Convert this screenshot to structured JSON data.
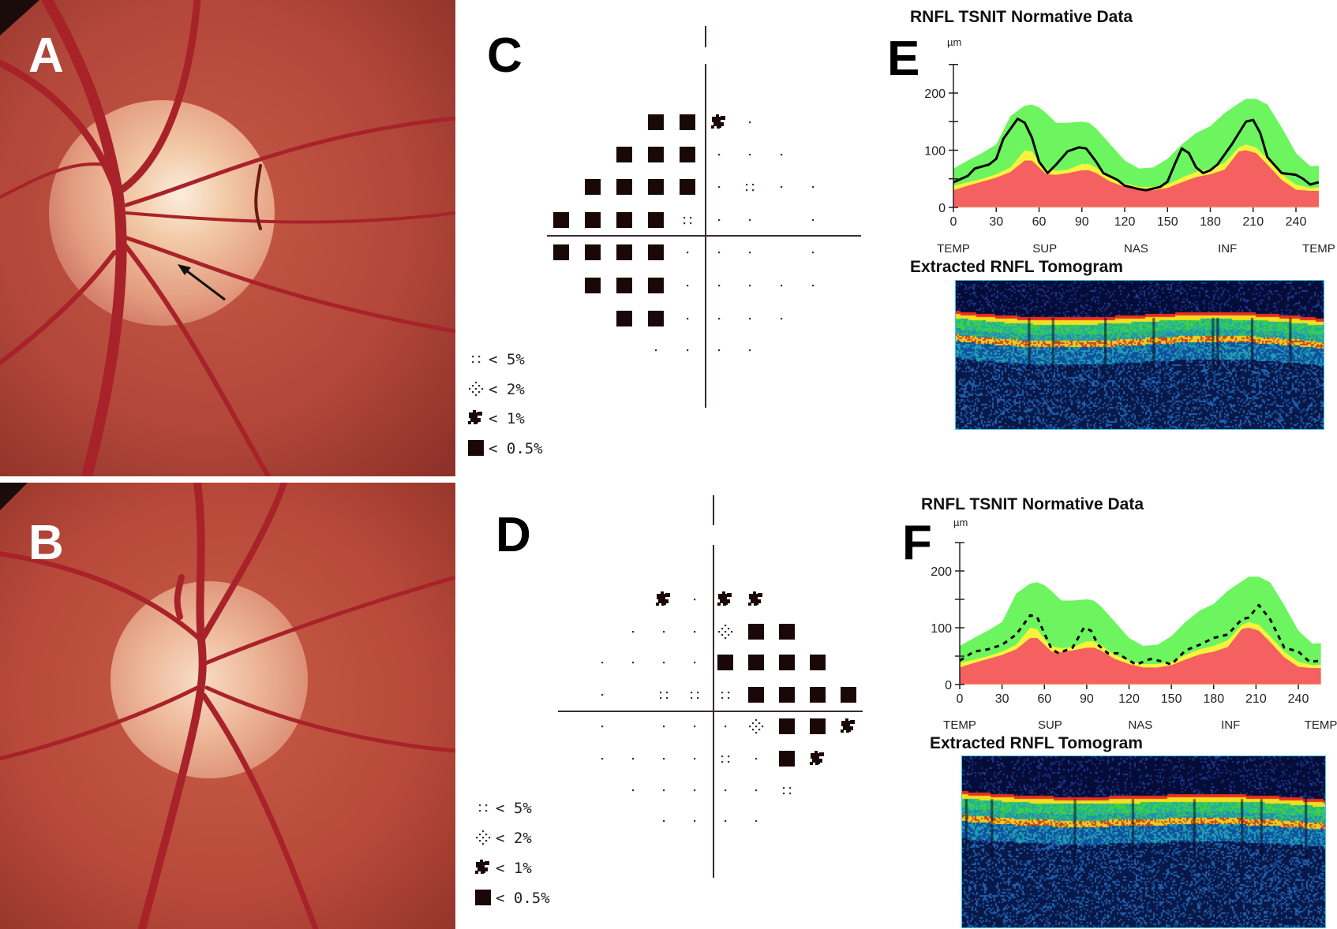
{
  "panels": {
    "A": {
      "letter": "A"
    },
    "B": {
      "letter": "B"
    },
    "C": {
      "letter": "C"
    },
    "D": {
      "letter": "D"
    },
    "E": {
      "letter": "E",
      "title": "RNFL TSNIT Normative Data",
      "tomogram_title": "Extracted RNFL Tomogram"
    },
    "F": {
      "letter": "F",
      "title": "RNFL TSNIT Normative Data",
      "tomogram_title": "Extracted RNFL Tomogram"
    }
  },
  "colors": {
    "normal_band": "#6cf55e",
    "borderline_band": "#f7f23c",
    "outside_normal_band": "#f56060",
    "patient_line": "#000000",
    "fundus": "#b5483a",
    "symbol": "#1a0808"
  },
  "visual_fields": {
    "legend": [
      {
        "code": "5",
        "label": "< 5%"
      },
      {
        "code": "2",
        "label": "< 2%"
      },
      {
        "code": "1",
        "label": "< 1%"
      },
      {
        "code": "B",
        "label": "< 0.5%"
      }
    ],
    "C": {
      "grid": [
        "   BB1.  ",
        "  BBB... ",
        " BBBB.5..",
        "BBBB5.. .",
        "BBBB... .",
        " BBB.....",
        "  BB.... ",
        "   ....  "
      ]
    },
    "D": {
      "grid": [
        "  1.11   ",
        " ...2BB  ",
        "....BBBB ",
        ". 555BBBB",
        ". ...2BB1",
        "....5.B1 ",
        " .....5  ",
        "  ....   "
      ]
    }
  },
  "chart_data": [
    {
      "panel": "E",
      "type": "area",
      "title": "RNFL TSNIT Normative Data",
      "ylabel": "µm",
      "xlim": [
        0,
        256
      ],
      "ylim": [
        0,
        250
      ],
      "xticks": [
        0,
        30,
        60,
        90,
        120,
        150,
        180,
        210,
        240
      ],
      "yticks": [
        0,
        50,
        100,
        150,
        200
      ],
      "ytick_labels": [
        "0",
        "",
        "100",
        "",
        "200"
      ],
      "region_labels": [
        {
          "label": "TEMP",
          "at": 0
        },
        {
          "label": "SUP",
          "at": 64
        },
        {
          "label": "NAS",
          "at": 128
        },
        {
          "label": "INF",
          "at": 192
        },
        {
          "label": "TEMP",
          "at": 256
        }
      ],
      "band_x": [
        0,
        10,
        20,
        30,
        40,
        50,
        55,
        60,
        65,
        72,
        80,
        90,
        95,
        100,
        110,
        120,
        130,
        140,
        150,
        160,
        170,
        180,
        190,
        200,
        205,
        212,
        220,
        230,
        240,
        250,
        256
      ],
      "bands": {
        "normal_upper": [
          68,
          82,
          95,
          110,
          160,
          178,
          180,
          175,
          165,
          148,
          148,
          150,
          148,
          138,
          110,
          82,
          68,
          70,
          85,
          110,
          130,
          142,
          165,
          182,
          190,
          190,
          180,
          140,
          95,
          72,
          73
        ],
        "borderline_upper": [
          38,
          44,
          50,
          58,
          70,
          100,
          98,
          80,
          68,
          64,
          66,
          76,
          76,
          70,
          52,
          42,
          36,
          36,
          40,
          52,
          62,
          68,
          78,
          105,
          110,
          105,
          85,
          58,
          40,
          34,
          35
        ],
        "outside_normal_upper": [
          30,
          38,
          45,
          52,
          62,
          82,
          82,
          70,
          58,
          57,
          60,
          65,
          65,
          60,
          45,
          36,
          30,
          30,
          34,
          44,
          53,
          58,
          66,
          98,
          100,
          95,
          75,
          48,
          31,
          29,
          29
        ]
      },
      "patient": {
        "style": "solid",
        "x": [
          0,
          10,
          15,
          25,
          30,
          35,
          45,
          50,
          55,
          60,
          66,
          72,
          80,
          88,
          93,
          100,
          105,
          115,
          120,
          130,
          135,
          145,
          150,
          155,
          160,
          165,
          170,
          175,
          180,
          185,
          195,
          205,
          210,
          215,
          220,
          230,
          240,
          245,
          250,
          256
        ],
        "y": [
          44,
          55,
          68,
          75,
          85,
          120,
          155,
          148,
          122,
          80,
          60,
          75,
          98,
          105,
          103,
          80,
          60,
          48,
          38,
          32,
          30,
          36,
          45,
          75,
          103,
          95,
          70,
          60,
          65,
          75,
          110,
          150,
          153,
          130,
          88,
          60,
          57,
          50,
          40,
          44
        ]
      }
    },
    {
      "panel": "F",
      "type": "area",
      "title": "RNFL TSNIT Normative Data",
      "ylabel": "µm",
      "xlim": [
        0,
        256
      ],
      "ylim": [
        0,
        250
      ],
      "xticks": [
        0,
        30,
        60,
        90,
        120,
        150,
        180,
        210,
        240
      ],
      "yticks": [
        0,
        50,
        100,
        150,
        200
      ],
      "ytick_labels": [
        "0",
        "",
        "100",
        "",
        "200"
      ],
      "region_labels": [
        {
          "label": "TEMP",
          "at": 0
        },
        {
          "label": "SUP",
          "at": 64
        },
        {
          "label": "NAS",
          "at": 128
        },
        {
          "label": "INF",
          "at": 192
        },
        {
          "label": "TEMP",
          "at": 256
        }
      ],
      "band_x": [
        0,
        10,
        20,
        30,
        40,
        50,
        55,
        60,
        65,
        72,
        80,
        90,
        95,
        100,
        110,
        120,
        130,
        140,
        150,
        160,
        170,
        180,
        190,
        200,
        205,
        212,
        220,
        230,
        240,
        250,
        256
      ],
      "bands": {
        "normal_upper": [
          68,
          82,
          95,
          110,
          160,
          178,
          180,
          175,
          165,
          148,
          148,
          150,
          148,
          138,
          110,
          82,
          68,
          70,
          85,
          110,
          130,
          142,
          165,
          182,
          190,
          190,
          180,
          140,
          95,
          72,
          73
        ],
        "borderline_upper": [
          38,
          44,
          50,
          58,
          70,
          100,
          98,
          80,
          68,
          64,
          66,
          76,
          76,
          70,
          52,
          42,
          36,
          36,
          40,
          52,
          62,
          68,
          78,
          105,
          110,
          105,
          85,
          58,
          40,
          34,
          35
        ],
        "outside_normal_upper": [
          30,
          38,
          45,
          52,
          62,
          82,
          82,
          70,
          58,
          57,
          60,
          65,
          65,
          60,
          45,
          36,
          30,
          30,
          34,
          44,
          53,
          58,
          66,
          98,
          100,
          95,
          75,
          48,
          31,
          29,
          29
        ]
      },
      "patient": {
        "style": "dashed",
        "x": [
          0,
          10,
          20,
          30,
          40,
          50,
          55,
          60,
          65,
          70,
          80,
          88,
          93,
          98,
          105,
          112,
          115,
          125,
          135,
          145,
          150,
          160,
          170,
          180,
          190,
          200,
          205,
          212,
          220,
          225,
          230,
          240,
          248,
          256
        ],
        "y": [
          42,
          58,
          62,
          70,
          88,
          122,
          118,
          90,
          63,
          55,
          65,
          100,
          95,
          70,
          55,
          55,
          50,
          35,
          45,
          40,
          35,
          60,
          70,
          82,
          88,
          115,
          118,
          140,
          115,
          90,
          65,
          58,
          40,
          42
        ]
      }
    }
  ]
}
